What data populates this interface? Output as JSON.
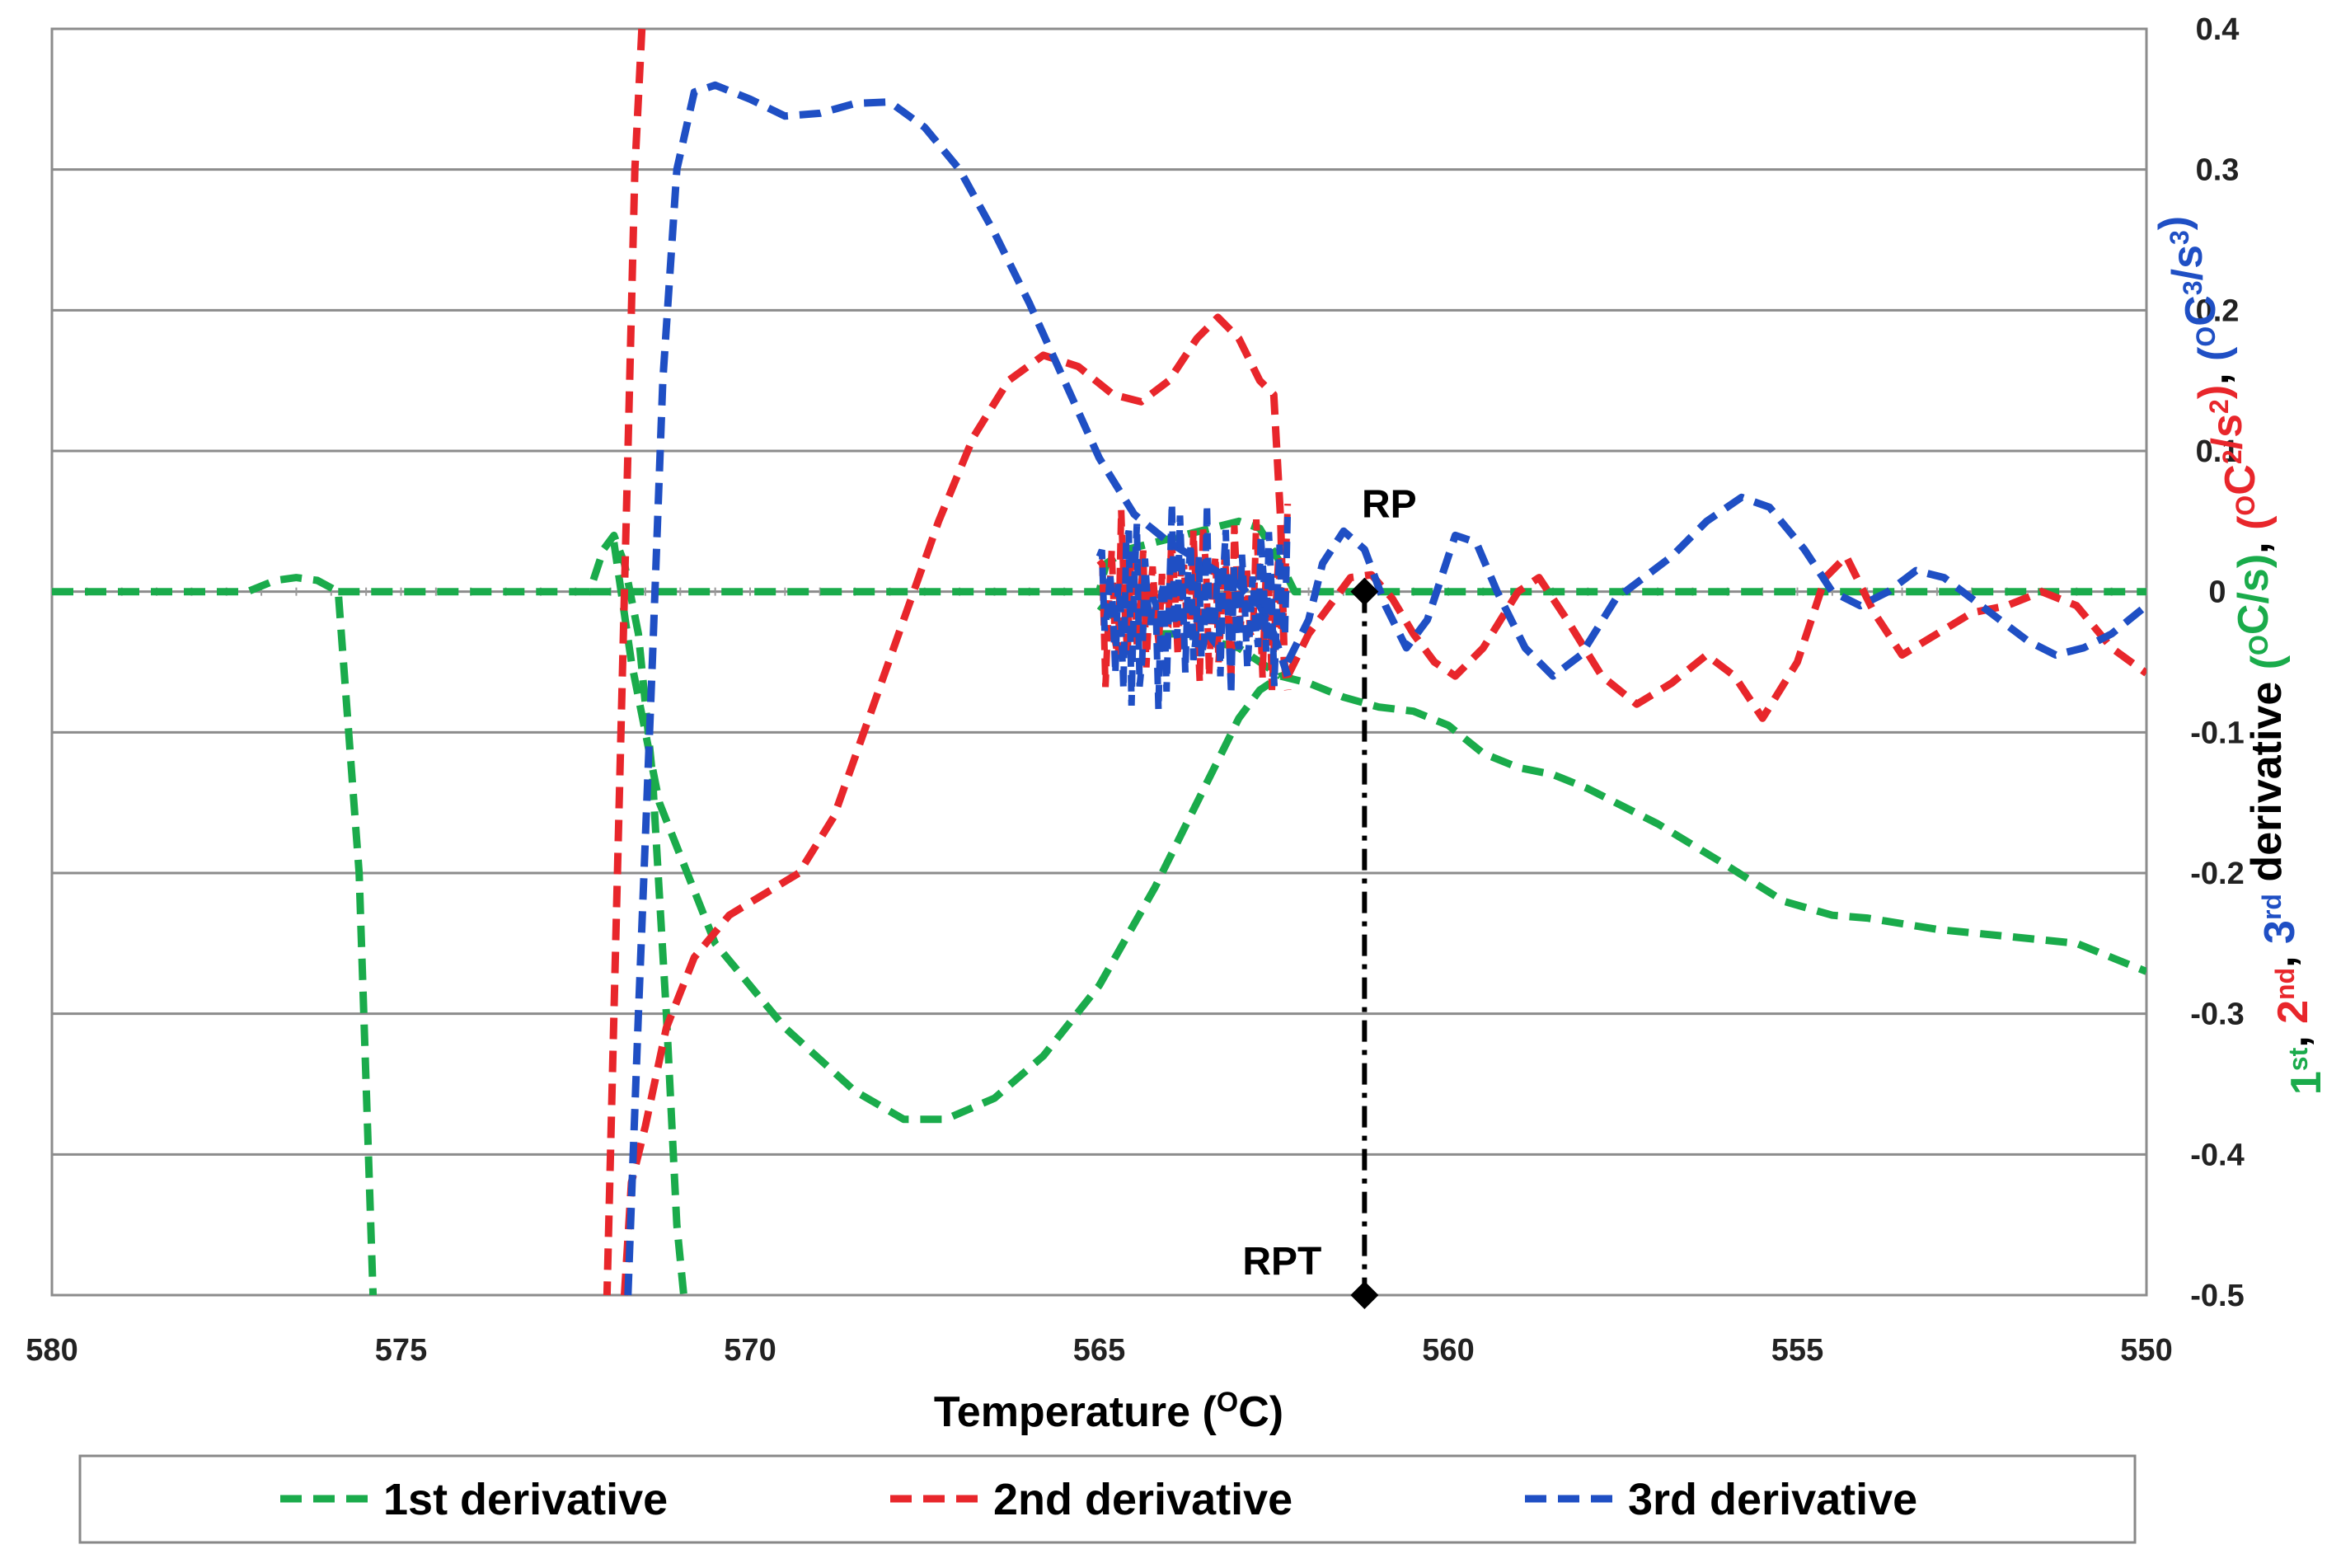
{
  "chart_data": {
    "type": "line",
    "xlabel": "Temperature (",
    "xlabel_unit": "O",
    "xlabel_end": "C)",
    "xlim": [
      580,
      550
    ],
    "ylim": [
      -0.5,
      0.4
    ],
    "x_ticks": [
      580,
      575,
      570,
      565,
      560,
      555,
      550
    ],
    "y_ticks": [
      0.4,
      0.3,
      0.2,
      0.1,
      0,
      -0.1,
      -0.2,
      -0.3,
      -0.4,
      -0.5
    ],
    "y_tick_labels": [
      "0.4",
      "0.3",
      "0.2",
      "0.1",
      "0",
      "-0.1",
      "-0.2",
      "-0.3",
      "-0.4",
      "-0.5"
    ],
    "x_tick_labels": [
      "580",
      "575",
      "570",
      "565",
      "560",
      "555",
      "550"
    ],
    "ylabel_parts": [
      {
        "text": "1",
        "color": "#1aab4b"
      },
      {
        "text": "st",
        "color": "#1aab4b",
        "sup": true
      },
      {
        "text": ", ",
        "color": "#000000"
      },
      {
        "text": "2",
        "color": "#e8262b"
      },
      {
        "text": "nd",
        "color": "#e8262b",
        "sup": true
      },
      {
        "text": ", ",
        "color": "#000000"
      },
      {
        "text": "3",
        "color": "#1f4fc4"
      },
      {
        "text": "rd",
        "color": "#1f4fc4",
        "sup": true
      },
      {
        "text": " derivative ",
        "color": "#000000"
      },
      {
        "text": "(",
        "color": "#1aab4b"
      },
      {
        "text": "O",
        "color": "#1aab4b",
        "sup": true
      },
      {
        "text": "C/s)",
        "color": "#1aab4b"
      },
      {
        "text": ", ",
        "color": "#000000"
      },
      {
        "text": "(",
        "color": "#e8262b"
      },
      {
        "text": "O",
        "color": "#e8262b",
        "sup": true
      },
      {
        "text": "C",
        "color": "#e8262b"
      },
      {
        "text": "2",
        "color": "#e8262b",
        "sup": true
      },
      {
        "text": "/s",
        "color": "#e8262b"
      },
      {
        "text": "2",
        "color": "#e8262b",
        "sup": true
      },
      {
        "text": ")",
        "color": "#e8262b"
      },
      {
        "text": ", ",
        "color": "#000000"
      },
      {
        "text": "(",
        "color": "#1f4fc4"
      },
      {
        "text": "O",
        "color": "#1f4fc4",
        "sup": true
      },
      {
        "text": "C",
        "color": "#1f4fc4"
      },
      {
        "text": "3",
        "color": "#1f4fc4",
        "sup": true
      },
      {
        "text": "/s",
        "color": "#1f4fc4"
      },
      {
        "text": "3",
        "color": "#1f4fc4",
        "sup": true
      },
      {
        "text": ")",
        "color": "#1f4fc4"
      }
    ],
    "grid": true,
    "legend_position": "bottom",
    "annotations": [
      {
        "label": "RP",
        "x": 561.2,
        "y": 0
      },
      {
        "label": "RPT",
        "x": 561.2,
        "y": -0.5
      }
    ],
    "marker_line": {
      "x": 561.2,
      "y_from": 0,
      "y_to": -0.5
    },
    "series": [
      {
        "name": "1st derivative",
        "color": "#1aab4b",
        "segments": [
          [
            [
              580,
              0
            ],
            [
              577.2,
              0
            ],
            [
              576.8,
              0.008
            ],
            [
              576.5,
              0.01
            ],
            [
              576.2,
              0.008
            ],
            [
              575.9,
              0
            ],
            [
              575.6,
              -0.2
            ],
            [
              575.4,
              -0.5
            ]
          ],
          [
            [
              575.9,
              0
            ],
            [
              572.3,
              0
            ],
            [
              572.1,
              0.03
            ],
            [
              571.95,
              0.04
            ],
            [
              571.8,
              0.02
            ],
            [
              571.6,
              -0.03
            ],
            [
              571.4,
              -0.13
            ],
            [
              571.2,
              -0.3
            ],
            [
              571.05,
              -0.45
            ],
            [
              570.95,
              -0.5
            ]
          ],
          [
            [
              571.95,
              0.035
            ],
            [
              571.7,
              -0.05
            ],
            [
              571.3,
              -0.15
            ],
            [
              570.5,
              -0.25
            ],
            [
              569.5,
              -0.31
            ],
            [
              568.5,
              -0.355
            ],
            [
              567.8,
              -0.375
            ],
            [
              567.2,
              -0.375
            ],
            [
              566.5,
              -0.36
            ],
            [
              565.8,
              -0.33
            ],
            [
              565,
              -0.28
            ],
            [
              564.2,
              -0.21
            ],
            [
              563.5,
              -0.14
            ],
            [
              563.0,
              -0.09
            ],
            [
              562.7,
              -0.07
            ],
            [
              562.4,
              -0.06
            ],
            [
              562.0,
              -0.065
            ],
            [
              561.5,
              -0.075
            ],
            [
              561.0,
              -0.082
            ],
            [
              560.5,
              -0.085
            ],
            [
              560.0,
              -0.095
            ],
            [
              559.5,
              -0.115
            ],
            [
              559.0,
              -0.125
            ],
            [
              558.5,
              -0.13
            ],
            [
              558.0,
              -0.14
            ],
            [
              557.0,
              -0.165
            ],
            [
              556.0,
              -0.195
            ],
            [
              555.2,
              -0.22
            ],
            [
              554.5,
              -0.23
            ],
            [
              554.0,
              -0.232
            ],
            [
              553.0,
              -0.24
            ],
            [
              552.0,
              -0.245
            ],
            [
              551.0,
              -0.25
            ],
            [
              550.0,
              -0.27
            ]
          ],
          [
            [
              572.3,
              0
            ],
            [
              565.0,
              0
            ],
            [
              564.9,
              0.02
            ],
            [
              564.6,
              0.03
            ],
            [
              564.2,
              0.035
            ],
            [
              563.8,
              0.04
            ],
            [
              563.4,
              0.045
            ],
            [
              563.0,
              0.05
            ],
            [
              562.7,
              0.045
            ],
            [
              562.4,
              0.02
            ],
            [
              562.2,
              0
            ],
            [
              550,
              0
            ]
          ],
          [
            [
              565.0,
              -0.01
            ],
            [
              564.6,
              -0.025
            ],
            [
              564.2,
              -0.03
            ],
            [
              563.8,
              -0.03
            ],
            [
              563.4,
              -0.035
            ],
            [
              563.0,
              -0.04
            ],
            [
              562.7,
              -0.05
            ],
            [
              562.4,
              -0.06
            ]
          ]
        ]
      },
      {
        "name": "2nd derivative",
        "color": "#e8262b",
        "segments": [
          [
            [
              571.55,
              0.4
            ],
            [
              571.65,
              0.3
            ],
            [
              571.75,
              0.1
            ],
            [
              571.85,
              -0.1
            ],
            [
              571.95,
              -0.3
            ],
            [
              572.05,
              -0.5
            ]
          ],
          [
            [
              571.8,
              -0.5
            ],
            [
              571.7,
              -0.42
            ],
            [
              571.5,
              -0.38
            ],
            [
              571.2,
              -0.31
            ],
            [
              570.8,
              -0.26
            ],
            [
              570.3,
              -0.23
            ],
            [
              569.8,
              -0.215
            ],
            [
              569.3,
              -0.2
            ],
            [
              568.8,
              -0.16
            ],
            [
              568.3,
              -0.09
            ],
            [
              567.8,
              -0.02
            ],
            [
              567.3,
              0.05
            ],
            [
              566.8,
              0.11
            ],
            [
              566.3,
              0.15
            ],
            [
              565.8,
              0.168
            ],
            [
              565.3,
              0.16
            ],
            [
              564.8,
              0.14
            ],
            [
              564.4,
              0.135
            ],
            [
              564.0,
              0.15
            ],
            [
              563.6,
              0.18
            ],
            [
              563.3,
              0.195
            ],
            [
              563.0,
              0.18
            ],
            [
              562.7,
              0.15
            ],
            [
              562.5,
              0.14
            ],
            [
              562.4,
              0.05
            ],
            [
              562.35,
              -0.05
            ],
            [
              562.3,
              -0.07
            ]
          ],
          [
            [
              562.3,
              -0.06
            ],
            [
              562.0,
              -0.03
            ],
            [
              561.7,
              -0.01
            ],
            [
              561.4,
              0.01
            ],
            [
              561.1,
              0.012
            ],
            [
              560.8,
              -0.005
            ],
            [
              560.5,
              -0.03
            ],
            [
              560.2,
              -0.05
            ],
            [
              559.9,
              -0.06
            ],
            [
              559.5,
              -0.04
            ],
            [
              559.0,
              0
            ],
            [
              558.7,
              0.01
            ],
            [
              558.3,
              -0.02
            ],
            [
              557.8,
              -0.06
            ],
            [
              557.3,
              -0.08
            ],
            [
              556.8,
              -0.065
            ],
            [
              556.3,
              -0.045
            ],
            [
              555.9,
              -0.06
            ],
            [
              555.5,
              -0.09
            ],
            [
              555.0,
              -0.05
            ],
            [
              554.6,
              0.01
            ],
            [
              554.3,
              0.025
            ],
            [
              553.9,
              -0.015
            ],
            [
              553.5,
              -0.045
            ],
            [
              553.0,
              -0.03
            ],
            [
              552.5,
              -0.015
            ],
            [
              552.0,
              -0.01
            ],
            [
              551.5,
              0
            ],
            [
              551.0,
              -0.01
            ],
            [
              550.5,
              -0.04
            ],
            [
              550.0,
              -0.058
            ]
          ]
        ]
      },
      {
        "name": "3rd derivative",
        "color": "#1f4fc4",
        "segments": [
          [
            [
              571.75,
              -0.5
            ],
            [
              571.6,
              -0.3
            ],
            [
              571.4,
              -0.05
            ],
            [
              571.25,
              0.15
            ],
            [
              571.05,
              0.3
            ],
            [
              570.8,
              0.355
            ],
            [
              570.5,
              0.36
            ],
            [
              570.0,
              0.35
            ],
            [
              569.5,
              0.338
            ],
            [
              569.0,
              0.34
            ],
            [
              568.5,
              0.347
            ],
            [
              568.0,
              0.348
            ],
            [
              567.5,
              0.33
            ],
            [
              567.0,
              0.3
            ],
            [
              566.5,
              0.255
            ],
            [
              566.0,
              0.205
            ],
            [
              565.5,
              0.15
            ],
            [
              565.0,
              0.095
            ],
            [
              564.5,
              0.055
            ],
            [
              564.0,
              0.035
            ],
            [
              563.5,
              0.02
            ],
            [
              563.0,
              0.005
            ],
            [
              562.7,
              -0.01
            ],
            [
              562.5,
              -0.03
            ],
            [
              562.3,
              -0.06
            ]
          ],
          [
            [
              562.3,
              -0.05
            ],
            [
              562.0,
              -0.02
            ],
            [
              561.8,
              0.02
            ],
            [
              561.5,
              0.043
            ],
            [
              561.2,
              0.03
            ],
            [
              560.9,
              -0.01
            ],
            [
              560.6,
              -0.04
            ],
            [
              560.3,
              -0.02
            ],
            [
              559.9,
              0.04
            ],
            [
              559.6,
              0.035
            ],
            [
              559.3,
              0
            ],
            [
              558.9,
              -0.04
            ],
            [
              558.5,
              -0.06
            ],
            [
              558.1,
              -0.045
            ],
            [
              557.6,
              -0.005
            ],
            [
              557.2,
              0.01
            ],
            [
              556.8,
              0.025
            ],
            [
              556.3,
              0.05
            ],
            [
              555.8,
              0.067
            ],
            [
              555.4,
              0.06
            ],
            [
              554.9,
              0.03
            ],
            [
              554.5,
              0
            ],
            [
              554.1,
              -0.01
            ],
            [
              553.7,
              0
            ],
            [
              553.3,
              0.015
            ],
            [
              552.9,
              0.01
            ],
            [
              552.5,
              -0.005
            ],
            [
              552.1,
              -0.02
            ],
            [
              551.7,
              -0.035
            ],
            [
              551.3,
              -0.045
            ],
            [
              550.9,
              -0.04
            ],
            [
              550.5,
              -0.03
            ],
            [
              550.0,
              -0.01
            ]
          ]
        ]
      }
    ],
    "noise_region": {
      "x_from": 565.0,
      "x_to": 562.3
    }
  },
  "legend": {
    "items": [
      {
        "label": "1st derivative",
        "color": "#1aab4b"
      },
      {
        "label": "2nd derivative",
        "color": "#e8262b"
      },
      {
        "label": "3rd derivative",
        "color": "#1f4fc4"
      }
    ]
  }
}
